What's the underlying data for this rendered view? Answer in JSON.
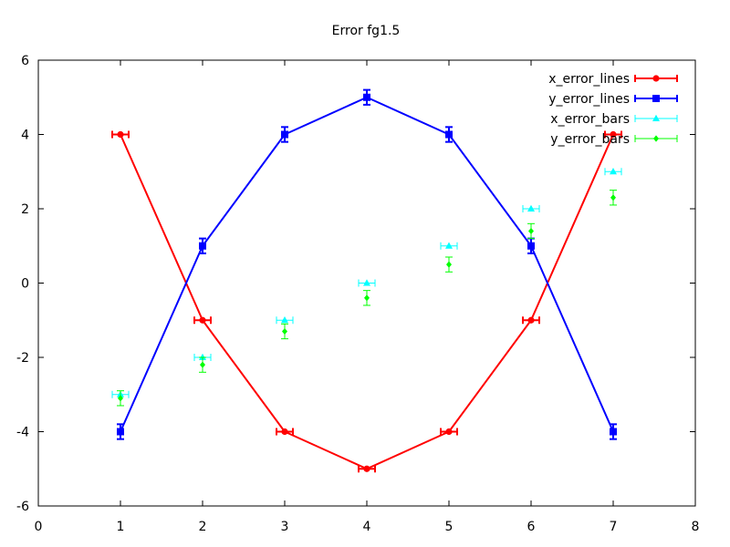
{
  "chart_data": {
    "type": "scatter",
    "title": "Error fg1.5",
    "xlabel": "",
    "ylabel": "",
    "xlim": [
      0,
      8
    ],
    "ylim": [
      -6,
      6
    ],
    "xticks": [
      "0",
      "1",
      "2",
      "3",
      "4",
      "5",
      "6",
      "7",
      "8"
    ],
    "yticks": [
      "-6",
      "-4",
      "-2",
      "0",
      "2",
      "4",
      "6"
    ],
    "grid": false,
    "legend_position": "top-right",
    "series": [
      {
        "name": "x_error_lines",
        "color": "#ff0000",
        "marker": "circle",
        "line": true,
        "error_axis": "x",
        "points": [
          {
            "x": 1,
            "y": 4,
            "err": 0.1
          },
          {
            "x": 2,
            "y": -1,
            "err": 0.1
          },
          {
            "x": 3,
            "y": -4,
            "err": 0.1
          },
          {
            "x": 4,
            "y": -5,
            "err": 0.1
          },
          {
            "x": 5,
            "y": -4,
            "err": 0.1
          },
          {
            "x": 6,
            "y": -1,
            "err": 0.1
          },
          {
            "x": 7,
            "y": 4,
            "err": 0.1
          }
        ]
      },
      {
        "name": "y_error_lines",
        "color": "#0000ff",
        "marker": "square",
        "line": true,
        "error_axis": "y",
        "points": [
          {
            "x": 1,
            "y": -4,
            "err": 0.2
          },
          {
            "x": 2,
            "y": 1,
            "err": 0.2
          },
          {
            "x": 3,
            "y": 4,
            "err": 0.2
          },
          {
            "x": 4,
            "y": 5,
            "err": 0.2
          },
          {
            "x": 5,
            "y": 4,
            "err": 0.2
          },
          {
            "x": 6,
            "y": 1,
            "err": 0.2
          },
          {
            "x": 7,
            "y": -4,
            "err": 0.2
          }
        ]
      },
      {
        "name": "x_error_bars",
        "color": "#00ffff",
        "marker": "triangle",
        "line": false,
        "error_axis": "x",
        "points": [
          {
            "x": 1,
            "y": -3,
            "err": 0.1
          },
          {
            "x": 2,
            "y": -2,
            "err": 0.1
          },
          {
            "x": 3,
            "y": -1,
            "err": 0.1
          },
          {
            "x": 4,
            "y": 0,
            "err": 0.1
          },
          {
            "x": 5,
            "y": 1,
            "err": 0.1
          },
          {
            "x": 6,
            "y": 2,
            "err": 0.1
          },
          {
            "x": 7,
            "y": 3,
            "err": 0.1
          }
        ]
      },
      {
        "name": "y_error_bars",
        "color": "#00ff00",
        "marker": "diamond",
        "line": false,
        "error_axis": "y",
        "points": [
          {
            "x": 1,
            "y": -3.1,
            "err": 0.2
          },
          {
            "x": 2,
            "y": -2.2,
            "err": 0.2
          },
          {
            "x": 3,
            "y": -1.3,
            "err": 0.2
          },
          {
            "x": 4,
            "y": -0.4,
            "err": 0.2
          },
          {
            "x": 5,
            "y": 0.5,
            "err": 0.2
          },
          {
            "x": 6,
            "y": 1.4,
            "err": 0.2
          },
          {
            "x": 7,
            "y": 2.3,
            "err": 0.2
          }
        ]
      }
    ]
  }
}
